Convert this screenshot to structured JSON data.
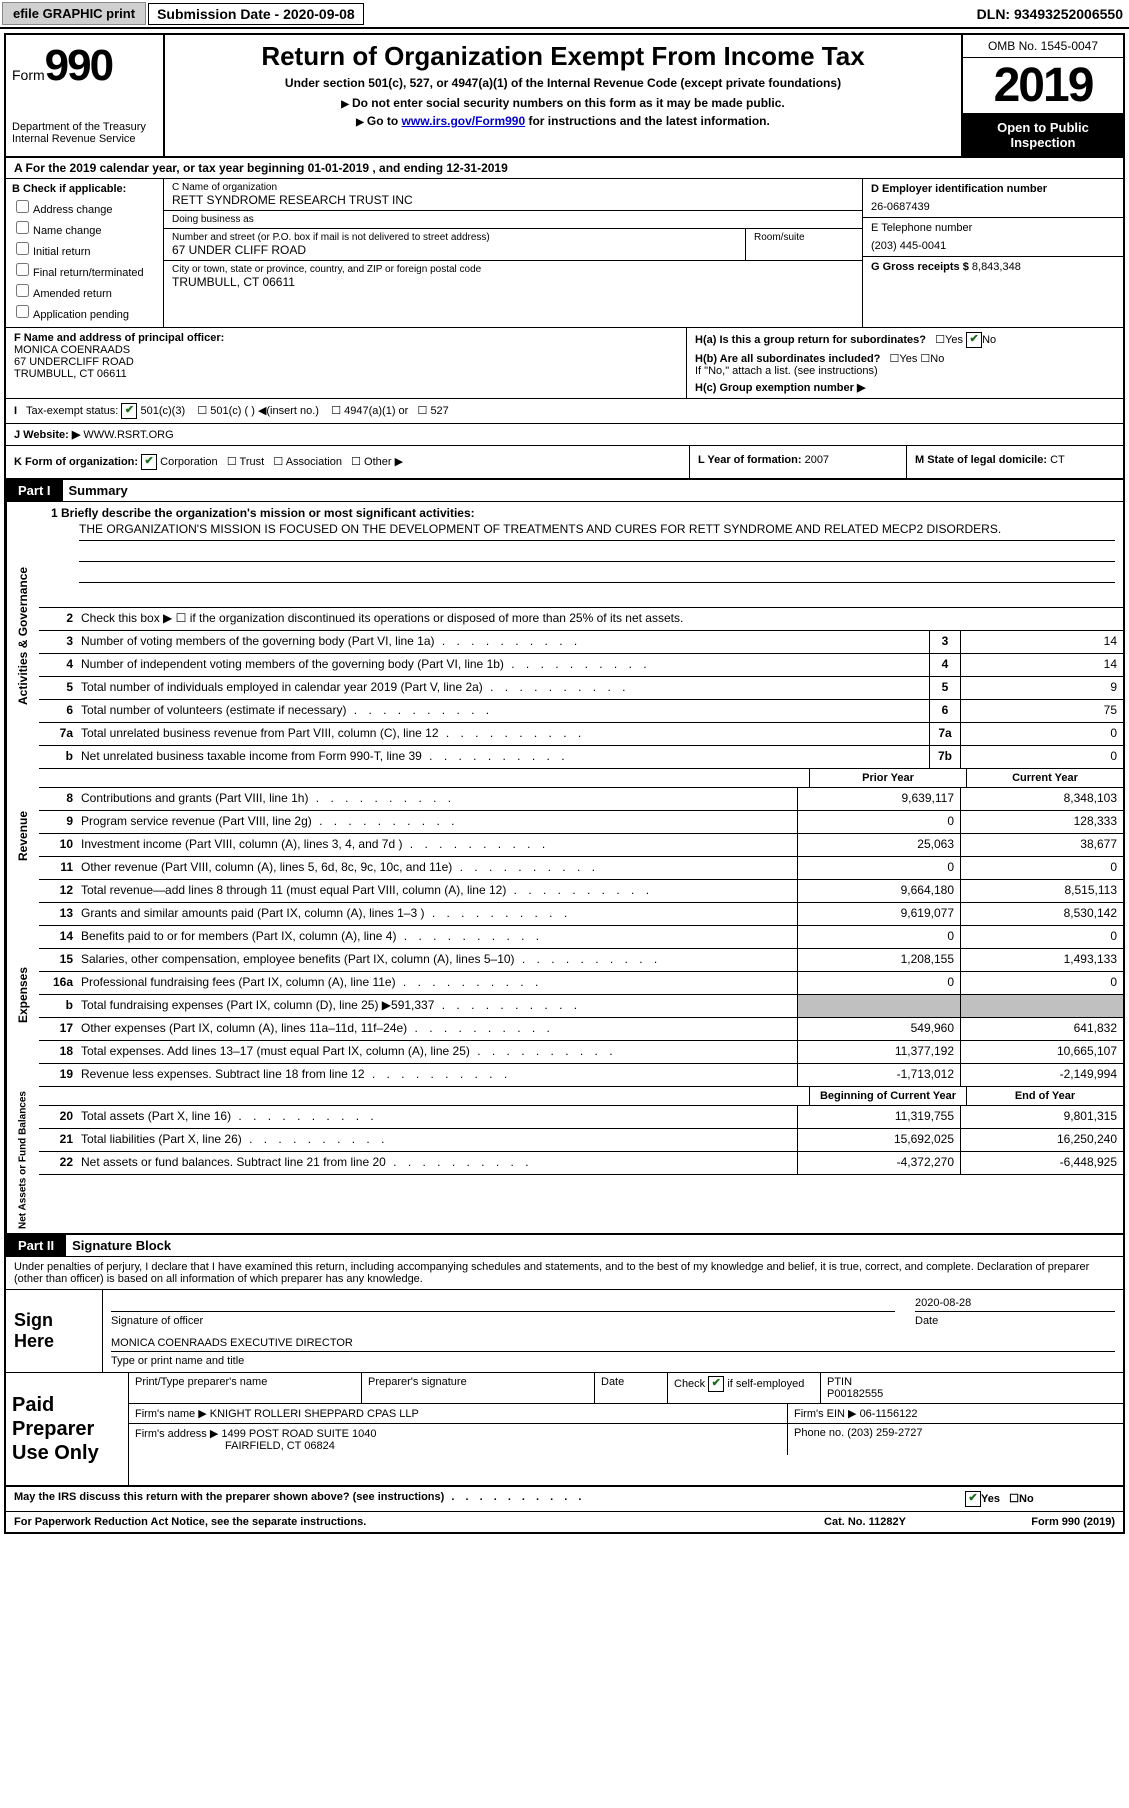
{
  "topbar": {
    "efile": "efile GRAPHIC print",
    "sub_date_label": "Submission Date - 2020-09-08",
    "dln": "DLN: 93493252006550"
  },
  "header": {
    "form_label": "Form",
    "form_num": "990",
    "dept": "Department of the Treasury Internal Revenue Service",
    "title": "Return of Organization Exempt From Income Tax",
    "subtitle": "Under section 501(c), 527, or 4947(a)(1) of the Internal Revenue Code (except private foundations)",
    "note1": "Do not enter social security numbers on this form as it may be made public.",
    "note2_pre": "Go to ",
    "note2_link": "www.irs.gov/Form990",
    "note2_post": " for instructions and the latest information.",
    "omb": "OMB No. 1545-0047",
    "year": "2019",
    "inspection": "Open to Public Inspection"
  },
  "row_a": "A For the 2019 calendar year, or tax year beginning 01-01-2019    , and ending 12-31-2019",
  "col_b": {
    "title": "B Check if applicable:",
    "items": [
      "Address change",
      "Name change",
      "Initial return",
      "Final return/terminated",
      "Amended return",
      "Application pending"
    ]
  },
  "col_c": {
    "name_label": "C Name of organization",
    "name": "RETT SYNDROME RESEARCH TRUST INC",
    "dba_label": "Doing business as",
    "dba": "",
    "addr_label": "Number and street (or P.O. box if mail is not delivered to street address)",
    "room_label": "Room/suite",
    "addr": "67 UNDER CLIFF ROAD",
    "city_label": "City or town, state or province, country, and ZIP or foreign postal code",
    "city": "TRUMBULL, CT  06611"
  },
  "col_d": {
    "ein_label": "D Employer identification number",
    "ein": "26-0687439",
    "phone_label": "E Telephone number",
    "phone": "(203) 445-0041",
    "gross_label": "G Gross receipts $",
    "gross": "8,843,348"
  },
  "section_f": {
    "label": "F Name and address of principal officer:",
    "name": "MONICA COENRAADS",
    "addr1": "67 UNDERCLIFF ROAD",
    "addr2": "TRUMBULL, CT  06611"
  },
  "section_h": {
    "ha": "H(a)  Is this a group return for subordinates?",
    "hb": "H(b)  Are all subordinates included?",
    "hb_note": "If \"No,\" attach a list. (see instructions)",
    "hc": "H(c)  Group exemption number ▶"
  },
  "section_i": {
    "label": "Tax-exempt status:",
    "opt1": "501(c)(3)",
    "opt2": "501(c) (  ) ◀(insert no.)",
    "opt3": "4947(a)(1) or",
    "opt4": "527"
  },
  "section_j": {
    "label": "J  Website: ▶",
    "value": "WWW.RSRT.ORG"
  },
  "section_k": {
    "label": "K Form of organization:",
    "opts": [
      "Corporation",
      "Trust",
      "Association",
      "Other ▶"
    ],
    "l_label": "L Year of formation:",
    "l_val": "2007",
    "m_label": "M State of legal domicile:",
    "m_val": "CT"
  },
  "part1": {
    "label": "Part I",
    "title": "Summary",
    "q1_label": "1  Briefly describe the organization's mission or most significant activities:",
    "q1_text": "THE ORGANIZATION'S MISSION IS FOCUSED ON THE DEVELOPMENT OF TREATMENTS AND CURES FOR RETT SYNDROME AND RELATED MECP2 DISORDERS.",
    "q2": "Check this box ▶ ☐  if the organization discontinued its operations or disposed of more than 25% of its net assets."
  },
  "gov_lines": [
    {
      "num": "3",
      "text": "Number of voting members of the governing body (Part VI, line 1a)",
      "box": "3",
      "val": "14"
    },
    {
      "num": "4",
      "text": "Number of independent voting members of the governing body (Part VI, line 1b)",
      "box": "4",
      "val": "14"
    },
    {
      "num": "5",
      "text": "Total number of individuals employed in calendar year 2019 (Part V, line 2a)",
      "box": "5",
      "val": "9"
    },
    {
      "num": "6",
      "text": "Total number of volunteers (estimate if necessary)",
      "box": "6",
      "val": "75"
    },
    {
      "num": "7a",
      "text": "Total unrelated business revenue from Part VIII, column (C), line 12",
      "box": "7a",
      "val": "0"
    },
    {
      "num": "b",
      "text": "Net unrelated business taxable income from Form 990-T, line 39",
      "box": "7b",
      "val": "0"
    }
  ],
  "col_headers": {
    "prior": "Prior Year",
    "current": "Current Year"
  },
  "rev_lines": [
    {
      "num": "8",
      "text": "Contributions and grants (Part VIII, line 1h)",
      "py": "9,639,117",
      "cy": "8,348,103"
    },
    {
      "num": "9",
      "text": "Program service revenue (Part VIII, line 2g)",
      "py": "0",
      "cy": "128,333"
    },
    {
      "num": "10",
      "text": "Investment income (Part VIII, column (A), lines 3, 4, and 7d )",
      "py": "25,063",
      "cy": "38,677"
    },
    {
      "num": "11",
      "text": "Other revenue (Part VIII, column (A), lines 5, 6d, 8c, 9c, 10c, and 11e)",
      "py": "0",
      "cy": "0"
    },
    {
      "num": "12",
      "text": "Total revenue—add lines 8 through 11 (must equal Part VIII, column (A), line 12)",
      "py": "9,664,180",
      "cy": "8,515,113"
    }
  ],
  "exp_lines": [
    {
      "num": "13",
      "text": "Grants and similar amounts paid (Part IX, column (A), lines 1–3 )",
      "py": "9,619,077",
      "cy": "8,530,142"
    },
    {
      "num": "14",
      "text": "Benefits paid to or for members (Part IX, column (A), line 4)",
      "py": "0",
      "cy": "0"
    },
    {
      "num": "15",
      "text": "Salaries, other compensation, employee benefits (Part IX, column (A), lines 5–10)",
      "py": "1,208,155",
      "cy": "1,493,133"
    },
    {
      "num": "16a",
      "text": "Professional fundraising fees (Part IX, column (A), line 11e)",
      "py": "0",
      "cy": "0"
    },
    {
      "num": "b",
      "text": "Total fundraising expenses (Part IX, column (D), line 25) ▶591,337",
      "py": "",
      "cy": "",
      "shaded": true
    },
    {
      "num": "17",
      "text": "Other expenses (Part IX, column (A), lines 11a–11d, 11f–24e)",
      "py": "549,960",
      "cy": "641,832"
    },
    {
      "num": "18",
      "text": "Total expenses. Add lines 13–17 (must equal Part IX, column (A), line 25)",
      "py": "11,377,192",
      "cy": "10,665,107"
    },
    {
      "num": "19",
      "text": "Revenue less expenses. Subtract line 18 from line 12",
      "py": "-1,713,012",
      "cy": "-2,149,994"
    }
  ],
  "net_headers": {
    "begin": "Beginning of Current Year",
    "end": "End of Year"
  },
  "net_lines": [
    {
      "num": "20",
      "text": "Total assets (Part X, line 16)",
      "py": "11,319,755",
      "cy": "9,801,315"
    },
    {
      "num": "21",
      "text": "Total liabilities (Part X, line 26)",
      "py": "15,692,025",
      "cy": "16,250,240"
    },
    {
      "num": "22",
      "text": "Net assets or fund balances. Subtract line 21 from line 20",
      "py": "-4,372,270",
      "cy": "-6,448,925"
    }
  ],
  "part2": {
    "label": "Part II",
    "title": "Signature Block",
    "declaration": "Under penalties of perjury, I declare that I have examined this return, including accompanying schedules and statements, and to the best of my knowledge and belief, it is true, correct, and complete. Declaration of preparer (other than officer) is based on all information of which preparer has any knowledge."
  },
  "sign": {
    "label": "Sign Here",
    "sig_label": "Signature of officer",
    "date_label": "Date",
    "date": "2020-08-28",
    "name": "MONICA COENRAADS  EXECUTIVE DIRECTOR",
    "name_label": "Type or print name and title"
  },
  "paid": {
    "label": "Paid Preparer Use Only",
    "h1": "Print/Type preparer's name",
    "h2": "Preparer's signature",
    "h3": "Date",
    "h4_pre": "Check",
    "h4_post": "if self-employed",
    "ptin_label": "PTIN",
    "ptin": "P00182555",
    "firm_name_label": "Firm's name    ▶",
    "firm_name": "KNIGHT ROLLERI SHEPPARD CPAS LLP",
    "firm_ein_label": "Firm's EIN ▶",
    "firm_ein": "06-1156122",
    "firm_addr_label": "Firm's address ▶",
    "firm_addr1": "1499 POST ROAD SUITE 1040",
    "firm_addr2": "FAIRFIELD, CT  06824",
    "phone_label": "Phone no.",
    "phone": "(203) 259-2727"
  },
  "footer": {
    "discuss": "May the IRS discuss this return with the preparer shown above? (see instructions)",
    "paperwork": "For Paperwork Reduction Act Notice, see the separate instructions.",
    "cat": "Cat. No. 11282Y",
    "form": "Form 990 (2019)"
  }
}
